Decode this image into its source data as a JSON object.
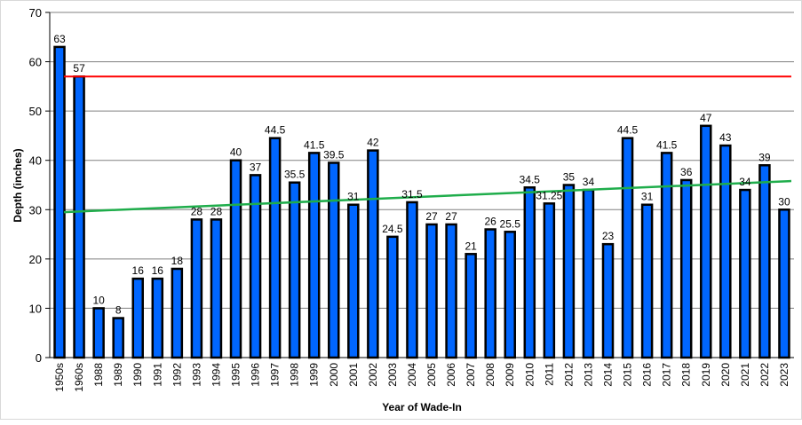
{
  "chart_data": {
    "type": "bar",
    "title": "",
    "xlabel": "Year of Wade-In",
    "ylabel": "Depth (inches)",
    "ylim": [
      0,
      70
    ],
    "yticks": [
      0,
      10,
      20,
      30,
      40,
      50,
      60,
      70
    ],
    "grid": true,
    "categories": [
      "1950s",
      "1960s",
      "1988",
      "1989",
      "1990",
      "1991",
      "1992",
      "1993",
      "1994",
      "1995",
      "1996",
      "1997",
      "1998",
      "1999",
      "2000",
      "2001",
      "2002",
      "2003",
      "2004",
      "2005",
      "2006",
      "2007",
      "2008",
      "2009",
      "2010",
      "2011",
      "2012",
      "2013",
      "2014",
      "2015",
      "2016",
      "2017",
      "2018",
      "2019",
      "2020",
      "2021",
      "2022",
      "2023"
    ],
    "values": [
      63,
      57,
      10,
      8,
      16,
      16,
      18,
      28,
      28,
      40,
      37,
      44.5,
      35.5,
      41.5,
      39.5,
      31,
      42,
      24.5,
      31.5,
      27,
      27,
      21,
      26,
      25.5,
      34.5,
      31.25,
      35,
      34,
      23,
      44.5,
      31,
      41.5,
      36,
      47,
      43,
      34,
      39,
      30
    ],
    "reference_line": {
      "value": 57,
      "color": "#ff0000"
    },
    "trend_line": {
      "start": 29.5,
      "end": 35.8,
      "color": "#1fad4b"
    },
    "bar_color": "#0066ff",
    "bar_edge_color": "#000000"
  }
}
